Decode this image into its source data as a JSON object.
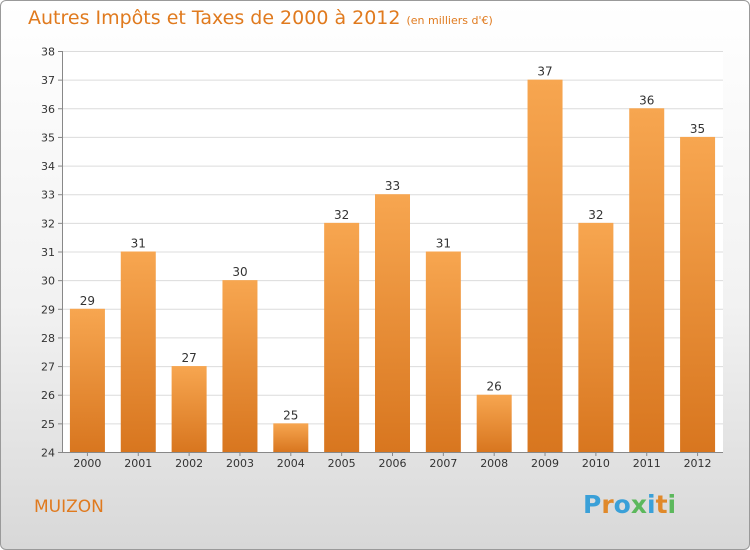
{
  "title": "Autres Impôts et Taxes de 2000 à 2012",
  "unit": "(en milliers d'€)",
  "commune": "MUIZON",
  "brand": {
    "name": "Proxiti",
    "letter_colors": [
      "#3aa0d8",
      "#e0892a",
      "#3aa0d8",
      "#5cb85c",
      "#3aa0d8",
      "#e0892a",
      "#5cb85c"
    ]
  },
  "colors": {
    "accent": "#e07a1e",
    "bar_light": "#f7a650",
    "bar_dark": "#d8761f"
  },
  "chart_data": {
    "type": "bar",
    "categories": [
      "2000",
      "2001",
      "2002",
      "2003",
      "2004",
      "2005",
      "2006",
      "2007",
      "2008",
      "2009",
      "2010",
      "2011",
      "2012"
    ],
    "values": [
      29,
      31,
      27,
      30,
      25,
      32,
      33,
      31,
      26,
      37,
      32,
      36,
      35
    ],
    "ylim": [
      24,
      38
    ],
    "yticks": [
      24,
      25,
      26,
      27,
      28,
      29,
      30,
      31,
      32,
      33,
      34,
      35,
      36,
      37,
      38
    ],
    "grid": true
  }
}
